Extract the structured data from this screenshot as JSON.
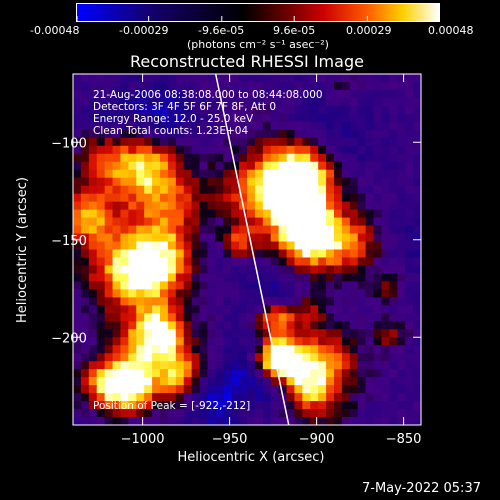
{
  "colorbar": {
    "tick_labels": [
      "-0.00048",
      "-0.00029",
      "-9.6e-05",
      "9.6e-05",
      "0.00029",
      "0.00048"
    ],
    "tick_values": [
      -0.00048,
      -0.00029,
      -9.6e-05,
      9.6e-05,
      0.00029,
      0.00048
    ],
    "unit_label": "(photons cm⁻² s⁻¹ asec⁻²)",
    "range": [
      -0.00048,
      0.00048
    ],
    "colors": [
      "#0000ff",
      "#000000",
      "#ff0000",
      "#ffff00",
      "#ffffff"
    ]
  },
  "chart_data": {
    "type": "heatmap",
    "title": "Reconstructed RHESSI Image",
    "xlabel": "Heliocentric X (arcsec)",
    "ylabel": "Heliocentric Y (arcsec)",
    "xlim": [
      -1040,
      -840
    ],
    "ylim": [
      -245,
      -65
    ],
    "x_ticks": [
      -1000,
      -950,
      -900,
      -850
    ],
    "x_tick_labels": [
      "−1000",
      "−950",
      "−900",
      "−850"
    ],
    "y_ticks": [
      -100,
      -150,
      -200
    ],
    "y_tick_labels": [
      "−100",
      "−150",
      "−200"
    ],
    "annotations": [
      "21-Aug-2006 08:38:08.000 to 08:44:08.000",
      "Detectors: 3F 4F 5F 6F 7F 8F, Att 0",
      "Energy Range: 12.0 - 25.0 keV",
      "Clean    Total counts: 1.23E+04"
    ],
    "peak_label": "Position of Peak = [-922,-212]",
    "peak": [
      -922,
      -212
    ],
    "limb_line": [
      [
        -958,
        -65
      ],
      [
        -916,
        -245
      ]
    ],
    "grid": false
  },
  "footer": {
    "date": "7-May-2022 05:37"
  }
}
